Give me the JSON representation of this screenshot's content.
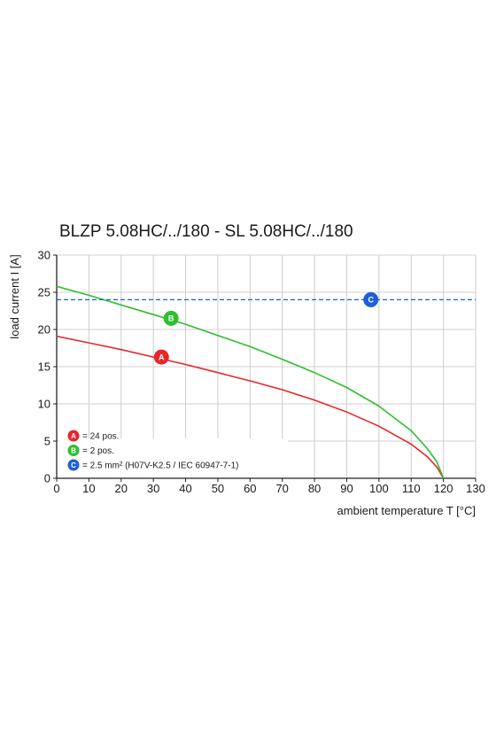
{
  "chart_data": {
    "type": "line",
    "title": "BLZP 5.08HC/../180 - SL 5.08HC/../180",
    "xlabel": "ambient temperature T [°C]",
    "ylabel": "load current I [A]",
    "xlim": [
      0,
      130
    ],
    "ylim": [
      0,
      30
    ],
    "xticks": [
      0,
      10,
      20,
      30,
      40,
      50,
      60,
      70,
      80,
      90,
      100,
      110,
      120,
      130
    ],
    "yticks": [
      0,
      5,
      10,
      15,
      20,
      25,
      30
    ],
    "grid": true,
    "legend_position": "bottom-left",
    "series": [
      {
        "badge": "A",
        "legend": "= 24 pos.",
        "color": "#e8262a",
        "style": "solid",
        "badge_point": [
          32.5,
          16.3
        ],
        "x": [
          0,
          10,
          20,
          30,
          40,
          50,
          60,
          70,
          80,
          90,
          100,
          110,
          115,
          118,
          120
        ],
        "y": [
          19.1,
          18.2,
          17.3,
          16.3,
          15.3,
          14.2,
          13.1,
          11.9,
          10.5,
          8.9,
          7.0,
          4.6,
          2.9,
          1.5,
          0
        ]
      },
      {
        "badge": "B",
        "legend": "= 2 pos.",
        "color": "#2fbf2f",
        "style": "solid",
        "badge_point": [
          35.5,
          21.5
        ],
        "x": [
          0,
          10,
          20,
          30,
          40,
          50,
          60,
          70,
          80,
          90,
          100,
          110,
          115,
          118,
          120
        ],
        "y": [
          25.8,
          24.6,
          23.3,
          22.0,
          20.7,
          19.2,
          17.7,
          16.0,
          14.2,
          12.2,
          9.7,
          6.4,
          4.0,
          2.2,
          0
        ]
      },
      {
        "badge": "C",
        "legend": "= 2.5 mm² (H07V-K2.5 / IEC 60947-7-1)",
        "color": "#1f5fd6",
        "style": "dashed",
        "badge_point": [
          97.5,
          24
        ],
        "x": [
          0,
          130
        ],
        "y": [
          24,
          24
        ]
      }
    ]
  }
}
